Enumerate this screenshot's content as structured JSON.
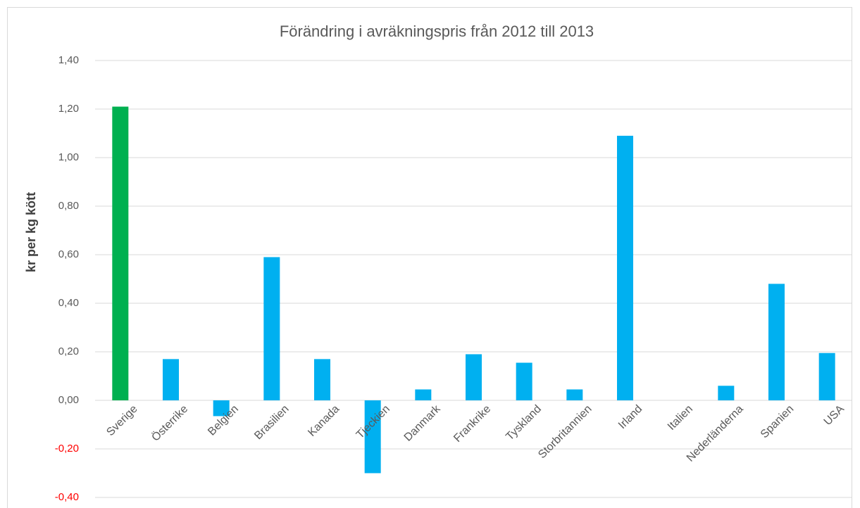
{
  "chart_data": {
    "type": "bar",
    "title": "Förändring i avräkningspris från 2012 till 2013",
    "y_label": "kr per kg kött",
    "categories": [
      "Sverige",
      "Österrike",
      "Belgien",
      "Brasilien",
      "Kanada",
      "Tjeckien",
      "Danmark",
      "Frankrike",
      "Tyskland",
      "Storbritannien",
      "Irland",
      "Italien",
      "Nederländerna",
      "Spanien",
      "USA"
    ],
    "values": [
      1.21,
      0.17,
      -0.065,
      0.59,
      0.17,
      -0.3,
      0.045,
      0.19,
      0.155,
      0.045,
      1.09,
      0,
      0.06,
      0.48,
      0.195
    ],
    "colors": [
      "#00b050",
      "#00b0f0",
      "#00b0f0",
      "#00b0f0",
      "#00b0f0",
      "#00b0f0",
      "#00b0f0",
      "#00b0f0",
      "#00b0f0",
      "#00b0f0",
      "#00b0f0",
      "#00b0f0",
      "#00b0f0",
      "#00b0f0",
      "#00b0f0"
    ],
    "ylim": [
      -0.4,
      1.4
    ],
    "yticks": [
      {
        "value": -0.4,
        "label": "-0,40"
      },
      {
        "value": -0.2,
        "label": "-0,20"
      },
      {
        "value": 0,
        "label": "0,00"
      },
      {
        "value": 0.2,
        "label": "0,20"
      },
      {
        "value": 0.4,
        "label": "0,40"
      },
      {
        "value": 0.6,
        "label": "0,60"
      },
      {
        "value": 0.8,
        "label": "0,80"
      },
      {
        "value": 1.0,
        "label": "1,00"
      },
      {
        "value": 1.2,
        "label": "1,20"
      },
      {
        "value": 1.4,
        "label": "1,40"
      }
    ],
    "negative_tick_color": "#ff0000",
    "grid": true
  }
}
